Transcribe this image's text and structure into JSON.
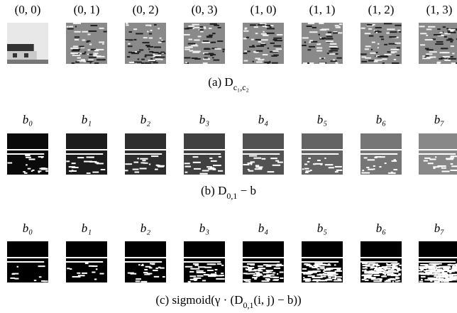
{
  "rows": [
    {
      "labels": [
        "(0, 0)",
        "(0, 1)",
        "(0, 2)",
        "(0, 3)",
        "(1, 0)",
        "(1, 1)",
        "(1, 2)",
        "(1, 3)"
      ],
      "caption": {
        "text": "(a) D",
        "sub": "c₁,c₂"
      }
    },
    {
      "labels": [
        "b₀",
        "b₁",
        "b₂",
        "b₃",
        "b₄",
        "b₅",
        "b₆",
        "b₇"
      ],
      "caption": {
        "text": "(b) D",
        "sub": "0,1",
        "after": " − b"
      }
    },
    {
      "labels": [
        "b₀",
        "b₁",
        "b₂",
        "b₃",
        "b₄",
        "b₅",
        "b₆",
        "b₇"
      ],
      "caption": {
        "text": "(c) sigmoid(γ · (D",
        "sub": "0,1",
        "after": "(i, j) − b))"
      }
    }
  ]
}
